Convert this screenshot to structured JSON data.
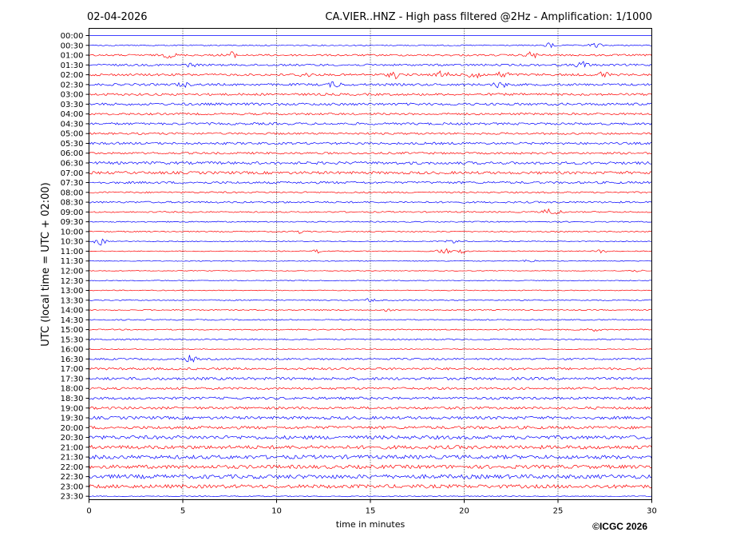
{
  "chart_data": {
    "type": "line",
    "date": "02-04-2026",
    "title": "CA.VIER..HNZ - High pass filtered @2Hz - Amplification: 1/1000",
    "xlabel": "time in minutes",
    "ylabel": "UTC (local time = UTC + 02:00)",
    "xlim": [
      0,
      30
    ],
    "x_ticks": [
      "0",
      "5",
      "10",
      "15",
      "20",
      "25",
      "30"
    ],
    "x_tick_values": [
      0,
      5,
      10,
      15,
      20,
      25,
      30
    ],
    "grid": "vertical dotted lines at x ticks",
    "copyright": "©ICGC 2026",
    "colors": {
      "red": "#ff0000",
      "blue": "#0000ff"
    },
    "rows": [
      {
        "label": "00:00",
        "color": "#0000ff",
        "noise": 0,
        "events": []
      },
      {
        "label": "00:30",
        "color": "#0000ff",
        "noise": 0.5,
        "events": [
          [
            24.6,
            2.5
          ],
          [
            27,
            2
          ]
        ]
      },
      {
        "label": "01:00",
        "color": "#ff0000",
        "noise": 0.8,
        "events": [
          [
            4.3,
            2.5
          ],
          [
            7.5,
            3.5
          ],
          [
            23.6,
            3
          ]
        ]
      },
      {
        "label": "01:30",
        "color": "#0000ff",
        "noise": 0.9,
        "events": [
          [
            5.4,
            1.5
          ],
          [
            26.3,
            3
          ]
        ]
      },
      {
        "label": "02:00",
        "color": "#ff0000",
        "noise": 1.0,
        "events": [
          [
            11.5,
            2
          ],
          [
            16.3,
            3
          ],
          [
            18.9,
            4
          ],
          [
            20.6,
            5
          ],
          [
            22.1,
            3
          ],
          [
            27.4,
            3
          ]
        ]
      },
      {
        "label": "02:30",
        "color": "#0000ff",
        "noise": 1.0,
        "events": [
          [
            5,
            2
          ],
          [
            13.1,
            2.5
          ],
          [
            21.9,
            3
          ]
        ]
      },
      {
        "label": "03:00",
        "color": "#ff0000",
        "noise": 1.0,
        "events": []
      },
      {
        "label": "03:30",
        "color": "#0000ff",
        "noise": 1.1,
        "events": []
      },
      {
        "label": "04:00",
        "color": "#ff0000",
        "noise": 0.9,
        "events": []
      },
      {
        "label": "04:30",
        "color": "#0000ff",
        "noise": 1.0,
        "events": []
      },
      {
        "label": "05:00",
        "color": "#ff0000",
        "noise": 0.9,
        "events": []
      },
      {
        "label": "05:30",
        "color": "#0000ff",
        "noise": 1.0,
        "events": []
      },
      {
        "label": "06:00",
        "color": "#ff0000",
        "noise": 0.9,
        "events": []
      },
      {
        "label": "06:30",
        "color": "#0000ff",
        "noise": 1.2,
        "events": []
      },
      {
        "label": "07:00",
        "color": "#ff0000",
        "noise": 1.2,
        "events": []
      },
      {
        "label": "07:30",
        "color": "#0000ff",
        "noise": 1.0,
        "events": []
      },
      {
        "label": "08:00",
        "color": "#ff0000",
        "noise": 0.7,
        "events": []
      },
      {
        "label": "08:30",
        "color": "#0000ff",
        "noise": 0.8,
        "events": []
      },
      {
        "label": "09:00",
        "color": "#ff0000",
        "noise": 0.6,
        "events": [
          [
            24.5,
            2.5
          ],
          [
            25,
            1.5
          ]
        ]
      },
      {
        "label": "09:30",
        "color": "#0000ff",
        "noise": 0.5,
        "events": []
      },
      {
        "label": "10:00",
        "color": "#ff0000",
        "noise": 0.5,
        "events": [
          [
            11.2,
            1.5
          ]
        ]
      },
      {
        "label": "10:30",
        "color": "#0000ff",
        "noise": 0.4,
        "events": [
          [
            0.6,
            3.5
          ],
          [
            19.4,
            2
          ]
        ]
      },
      {
        "label": "11:00",
        "color": "#ff0000",
        "noise": 0.4,
        "events": [
          [
            12.3,
            2
          ],
          [
            18.9,
            3
          ],
          [
            19.8,
            2.5
          ],
          [
            27.3,
            1.5
          ]
        ]
      },
      {
        "label": "11:30",
        "color": "#0000ff",
        "noise": 0.4,
        "events": [
          [
            23.5,
            1.5
          ]
        ]
      },
      {
        "label": "12:00",
        "color": "#ff0000",
        "noise": 0.3,
        "events": [
          [
            29.2,
            1.2
          ]
        ]
      },
      {
        "label": "12:30",
        "color": "#0000ff",
        "noise": 0.4,
        "events": []
      },
      {
        "label": "13:00",
        "color": "#ff0000",
        "noise": 0.4,
        "events": []
      },
      {
        "label": "13:30",
        "color": "#0000ff",
        "noise": 0.5,
        "events": [
          [
            15,
            1.5
          ]
        ]
      },
      {
        "label": "14:00",
        "color": "#ff0000",
        "noise": 0.5,
        "events": [
          [
            16,
            1.5
          ]
        ]
      },
      {
        "label": "14:30",
        "color": "#0000ff",
        "noise": 0.5,
        "events": []
      },
      {
        "label": "15:00",
        "color": "#ff0000",
        "noise": 0.5,
        "events": [
          [
            26.9,
            1.5
          ]
        ]
      },
      {
        "label": "15:30",
        "color": "#0000ff",
        "noise": 0.6,
        "events": []
      },
      {
        "label": "16:00",
        "color": "#ff0000",
        "noise": 0.4,
        "events": []
      },
      {
        "label": "16:30",
        "color": "#0000ff",
        "noise": 0.8,
        "events": [
          [
            5.4,
            3
          ]
        ]
      },
      {
        "label": "17:00",
        "color": "#ff0000",
        "noise": 1.0,
        "events": []
      },
      {
        "label": "17:30",
        "color": "#0000ff",
        "noise": 1.2,
        "events": []
      },
      {
        "label": "18:00",
        "color": "#ff0000",
        "noise": 1.0,
        "events": []
      },
      {
        "label": "18:30",
        "color": "#0000ff",
        "noise": 1.1,
        "events": []
      },
      {
        "label": "19:00",
        "color": "#ff0000",
        "noise": 1.1,
        "events": []
      },
      {
        "label": "19:30",
        "color": "#0000ff",
        "noise": 1.3,
        "events": []
      },
      {
        "label": "20:00",
        "color": "#ff0000",
        "noise": 1.3,
        "events": []
      },
      {
        "label": "20:30",
        "color": "#0000ff",
        "noise": 1.6,
        "events": []
      },
      {
        "label": "21:00",
        "color": "#ff0000",
        "noise": 1.6,
        "events": []
      },
      {
        "label": "21:30",
        "color": "#0000ff",
        "noise": 1.7,
        "events": []
      },
      {
        "label": "22:00",
        "color": "#ff0000",
        "noise": 1.6,
        "events": []
      },
      {
        "label": "22:30",
        "color": "#0000ff",
        "noise": 1.8,
        "events": []
      },
      {
        "label": "23:00",
        "color": "#ff0000",
        "noise": 1.6,
        "events": []
      },
      {
        "label": "23:30",
        "color": "#0000ff",
        "noise": 0.4,
        "events": []
      }
    ]
  }
}
